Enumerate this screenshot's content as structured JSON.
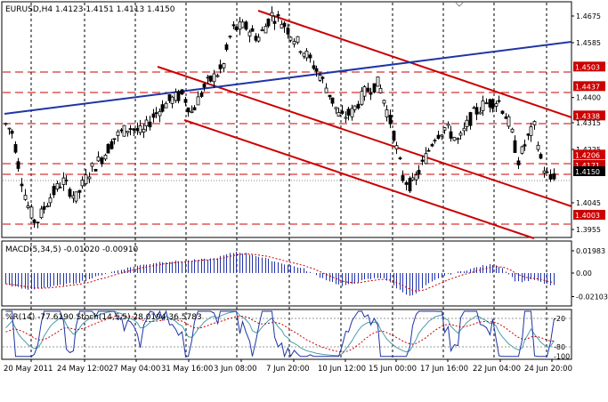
{
  "main_panel": {
    "header": "EURUSD,H4  1.4123 1.4151 1.4113 1.4150",
    "price_labels": [
      "1.4675",
      "1.4585",
      "1.4503",
      "1.4437",
      "1.4400",
      "1.4338",
      "1.4315",
      "1.4225",
      "1.4206",
      "1.4171",
      "1.4150",
      "1.4045",
      "1.4003",
      "1.3955"
    ],
    "highlighted_levels": [
      {
        "label": "1.4503",
        "color": "#cc0000"
      },
      {
        "label": "1.4437",
        "color": "#cc0000"
      },
      {
        "label": "1.4338",
        "color": "#cc0000"
      },
      {
        "label": "1.4206",
        "color": "#cc0000"
      },
      {
        "label": "1.4171",
        "color": "#cc0000"
      },
      {
        "label": "1.4003",
        "color": "#cc0000"
      },
      {
        "label": "1.4150",
        "color": "#000000"
      }
    ]
  },
  "macd_panel": {
    "header": "MACD(5,34,5) -0.01020 -0.00910",
    "labels": [
      "0.01983",
      "0.00",
      "-0.02103"
    ]
  },
  "oscillator_panel": {
    "header": "%R(14) -77.6190  Stoch(14,5,5) 28.0194 36.5783",
    "labels": [
      "-20",
      "-80",
      "-100"
    ]
  },
  "x_axis": {
    "labels": [
      "20 May 2011",
      "24 May 12:00",
      "27 May 04:00",
      "31 May 16:00",
      "3 Jun 08:00",
      "7 Jun 20:00",
      "10 Jun 12:00",
      "15 Jun 00:00",
      "17 Jun 16:00",
      "22 Jun 04:00",
      "24 Jun 20:00"
    ]
  },
  "colors": {
    "candles": "#000000",
    "channel_lines": "#cc0000",
    "trend_line": "#1f35a6",
    "levels": "#cc0000",
    "macd_bars": "#2233aa",
    "macd_signal": "#cc0000",
    "wpr_line": "#1f35a6",
    "stoch_main": "#4a9da8",
    "stoch_signal": "#cc0000"
  }
}
